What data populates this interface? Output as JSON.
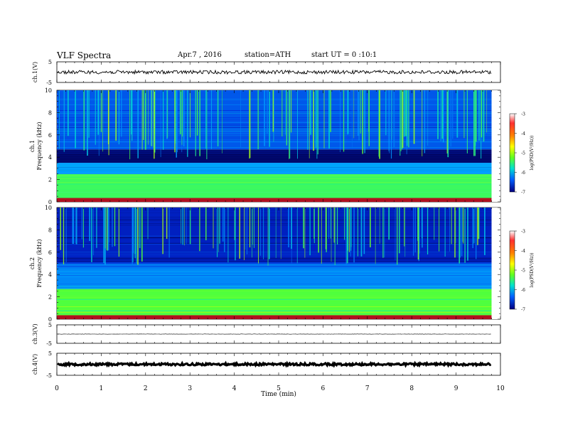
{
  "header": {
    "title": "VLF Spectra",
    "date": "Apr.7 , 2016",
    "station": "station=ATH",
    "start_ut": "start UT = 0 :10:1"
  },
  "colors": {
    "spectrogram_low": "#000050",
    "spectrogram_mid": "#00c8ff",
    "spectrogram_high": "#ffff00",
    "colorbar": [
      "#ffffff",
      "#ff4040",
      "#ff8000",
      "#ffff00",
      "#80ff00",
      "#00ffc0",
      "#00a0ff",
      "#0000c0"
    ]
  },
  "chart_data": [
    {
      "type": "line",
      "name": "ch1-waveform",
      "ylabel": "ch.1(V)",
      "ylim": [
        -5,
        5
      ],
      "yticks": [
        "5",
        "-5"
      ],
      "x_range_min": [
        0,
        9.8
      ],
      "level_v": 0
    },
    {
      "type": "heatmap",
      "name": "ch1-spectrogram",
      "ylabel_channel": "ch.1",
      "ylabel": "Frequency (kHz)",
      "ylim": [
        0,
        10
      ],
      "yticks": [
        "0",
        "2",
        "4",
        "6",
        "8",
        "10"
      ],
      "x_range_min": [
        0,
        9.8
      ],
      "colorbar": {
        "label": "log(PSD(V²/Hz))",
        "range": [
          -7,
          -3
        ],
        "ticks": [
          "-3",
          "-4",
          "-5",
          "-6",
          "-7"
        ]
      },
      "bands_khz": [
        {
          "range": [
            0,
            0.3
          ],
          "level": -3.2
        },
        {
          "range": [
            0.3,
            2.5
          ],
          "level": -5.3
        },
        {
          "range": [
            2.5,
            3.5
          ],
          "level": -6.0
        },
        {
          "range": [
            3.5,
            4.7
          ],
          "level": -6.9
        },
        {
          "range": [
            4.7,
            10
          ],
          "level": -6.3
        }
      ],
      "note": "Impulsive broadband spikes spanning 4-10 kHz throughout the interval"
    },
    {
      "type": "heatmap",
      "name": "ch2-spectrogram",
      "ylabel_channel": "ch.2",
      "ylabel": "Frequency (kHz)",
      "ylim": [
        0,
        10
      ],
      "yticks": [
        "0",
        "2",
        "4",
        "6",
        "8",
        "10"
      ],
      "x_range_min": [
        0,
        9.8
      ],
      "colorbar": {
        "label": "log(PSD(V²/Hz))",
        "range": [
          -7,
          -3
        ],
        "ticks": [
          "-3",
          "-4",
          "-5",
          "-6",
          "-7"
        ]
      },
      "bands_khz": [
        {
          "range": [
            0,
            0.3
          ],
          "level": -3.3
        },
        {
          "range": [
            0.3,
            2.7
          ],
          "level": -5.2
        },
        {
          "range": [
            2.7,
            5.0
          ],
          "level": -6.1
        },
        {
          "range": [
            5.0,
            10
          ],
          "level": -6.6
        }
      ],
      "note": "Impulsive broadband spikes spanning 5-10 kHz throughout the interval"
    },
    {
      "type": "line",
      "name": "ch3-waveform",
      "ylabel": "ch.3(V)",
      "ylim": [
        -5,
        5
      ],
      "yticks": [
        "5",
        "-5"
      ],
      "x_range_min": [
        0,
        9.8
      ],
      "level_v": 0
    },
    {
      "type": "line",
      "name": "ch4-waveform",
      "ylabel": "ch.4(V)",
      "ylim": [
        -5,
        5
      ],
      "yticks": [
        "5",
        "-5"
      ],
      "x_range_min": [
        0,
        9.8
      ],
      "level_v": 0
    }
  ],
  "x_axis": {
    "label": "Time (min)",
    "range": [
      0,
      10
    ],
    "ticks": [
      "0",
      "1",
      "2",
      "3",
      "4",
      "5",
      "6",
      "7",
      "8",
      "9",
      "10"
    ]
  }
}
